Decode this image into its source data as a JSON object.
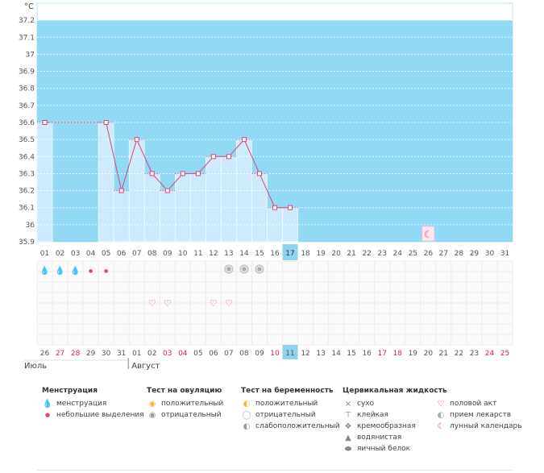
{
  "chart_data": {
    "type": "bar",
    "ylabel": "°C",
    "ylim": [
      35.9,
      37.3
    ],
    "ytick_labels": [
      "37.2",
      "37.1",
      "37",
      "36.9",
      "36.8",
      "36.7",
      "36.6",
      "36.5",
      "36.4",
      "36.3",
      "36.2",
      "36.1",
      "36",
      "35.9"
    ],
    "cycle_days": [
      "01",
      "02",
      "03",
      "04",
      "05",
      "06",
      "07",
      "08",
      "09",
      "10",
      "11",
      "12",
      "13",
      "14",
      "15",
      "16",
      "17",
      "18",
      "19",
      "20",
      "21",
      "22",
      "23",
      "24",
      "25",
      "26",
      "27",
      "28",
      "29",
      "30",
      "31"
    ],
    "temperatures": [
      36.6,
      null,
      null,
      null,
      36.6,
      36.2,
      36.5,
      36.3,
      36.2,
      36.3,
      36.3,
      36.4,
      36.4,
      36.5,
      36.3,
      36.1,
      36.1,
      null,
      null,
      null,
      null,
      null,
      null,
      null,
      null,
      null,
      null,
      null,
      null,
      null,
      null
    ],
    "selected_day": "17",
    "calendar_dates": [
      "26",
      "27",
      "28",
      "29",
      "30",
      "31",
      "01",
      "02",
      "03",
      "04",
      "05",
      "06",
      "07",
      "08",
      "09",
      "10",
      "11",
      "12",
      "13",
      "14",
      "15",
      "16",
      "17",
      "18",
      "19",
      "20",
      "21",
      "22",
      "23",
      "24",
      "25"
    ],
    "weekend_flags": [
      false,
      true,
      true,
      false,
      false,
      false,
      false,
      false,
      true,
      true,
      false,
      false,
      false,
      false,
      false,
      true,
      false,
      false,
      false,
      false,
      false,
      false,
      true,
      true,
      false,
      false,
      false,
      false,
      false,
      true,
      true
    ],
    "selected_date": "11",
    "months": [
      {
        "label": "Июль"
      },
      {
        "label": "Август"
      }
    ],
    "menstruation_symbols": [
      "heavy",
      "heavy",
      "heavy",
      "light",
      "light"
    ],
    "ovulation_tests": [
      "negative",
      "negative",
      "negative"
    ],
    "intercourse_indices": [
      7,
      8,
      11,
      12
    ],
    "moon_index": 25
  },
  "colors": {
    "plot_bg": "#91d9f4",
    "bar_fill": "#cdebfd",
    "line": "#e0447a",
    "selected": "#8fd2f0",
    "weekend": "#d6196b",
    "grid": "#ffffff"
  },
  "legend": {
    "menstruation": {
      "title": "Менструация",
      "items": [
        {
          "label": "менструация"
        },
        {
          "label": "небольшие выделения"
        }
      ]
    },
    "ovulation": {
      "title": "Тест на овуляцию",
      "items": [
        {
          "label": "положительный"
        },
        {
          "label": "отрицательный"
        }
      ]
    },
    "pregnancy": {
      "title": "Тест на беременность",
      "items": [
        {
          "label": "положительный"
        },
        {
          "label": "отрицательный"
        },
        {
          "label": "слабоположительный"
        }
      ]
    },
    "fluid": {
      "title": "Цервикальная жидкость",
      "items": [
        {
          "label": "сухо"
        },
        {
          "label": "клейкая"
        },
        {
          "label": "кремообразная"
        },
        {
          "label": "водянистая"
        },
        {
          "label": "яичный белок"
        }
      ]
    },
    "misc": {
      "items": [
        {
          "label": "половой акт"
        },
        {
          "label": "прием лекарств"
        },
        {
          "label": "лунный календарь"
        }
      ]
    }
  }
}
